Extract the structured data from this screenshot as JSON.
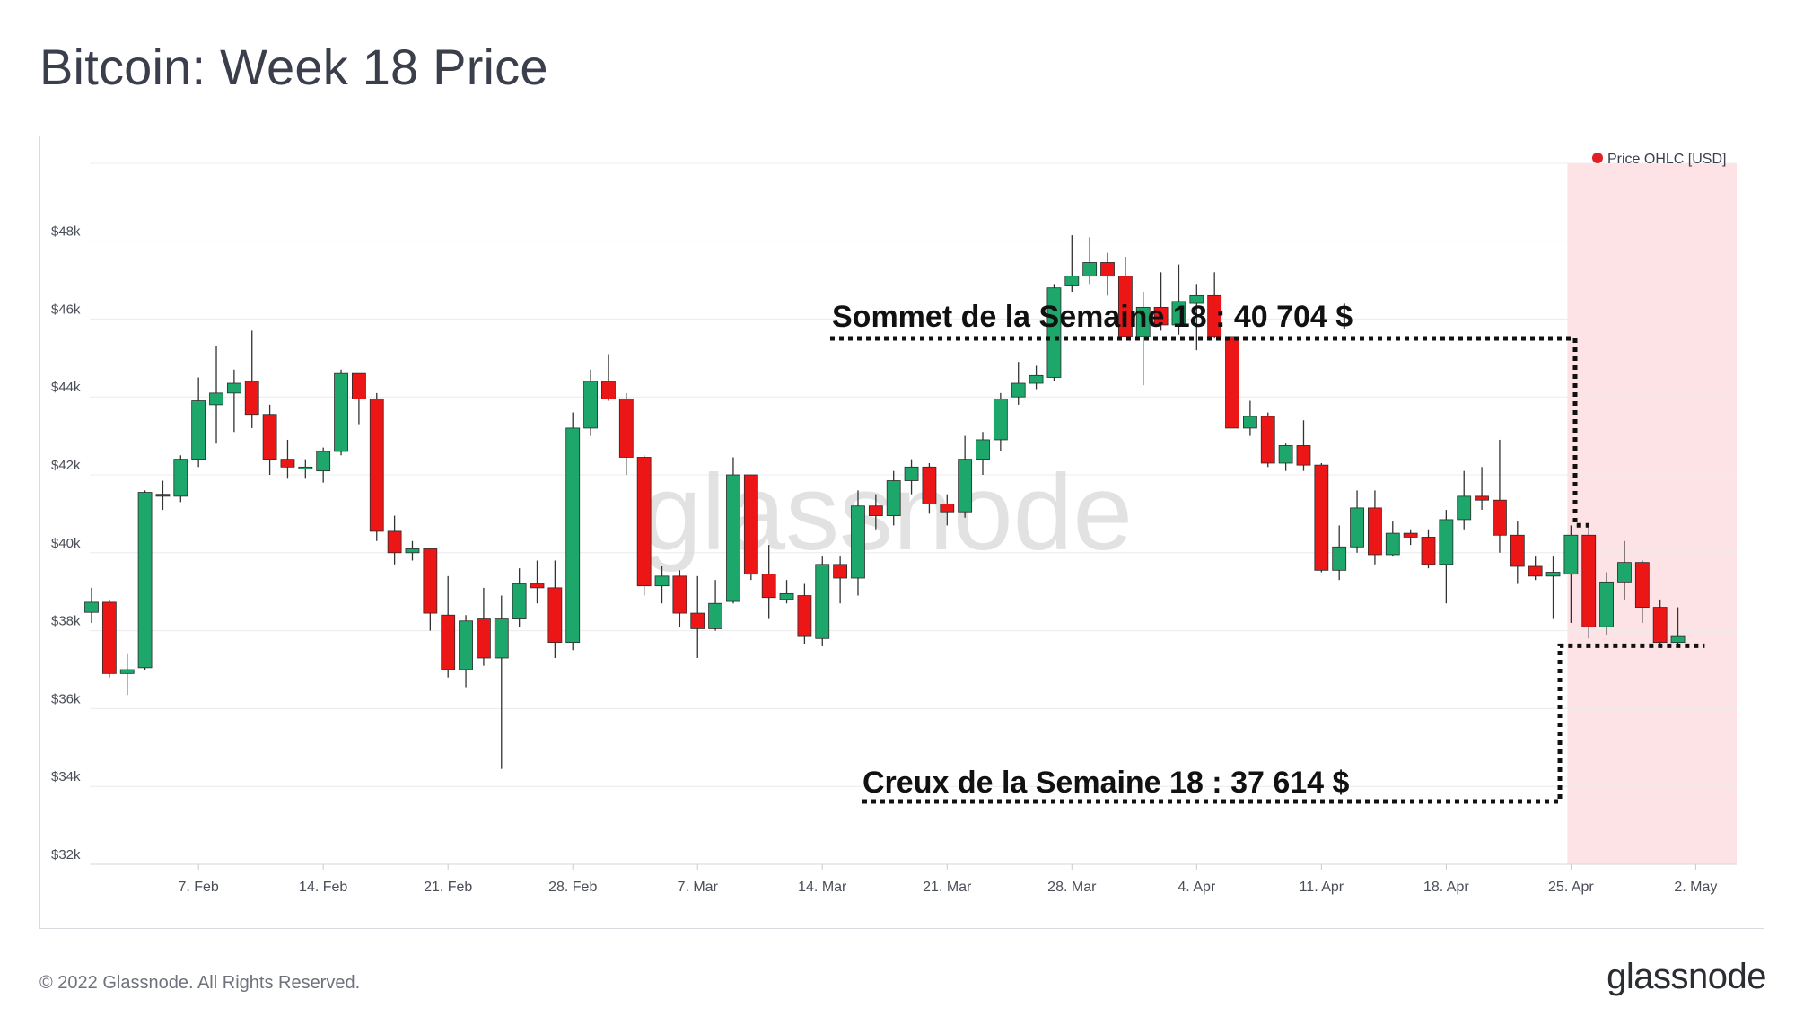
{
  "page": {
    "title": "Bitcoin: Week 18 Price",
    "copyright": "© 2022 Glassnode. All Rights Reserved.",
    "logo": "glassnode",
    "watermark": "glassnode"
  },
  "colors": {
    "up": "#1ea76a",
    "down": "#ec1616",
    "wick": "#333333",
    "highlight": "#fde3e6",
    "grid": "#ececee",
    "axis_text": "#4a4e57",
    "legend_dot": "#e31e24",
    "watermark": "#d9d9d9"
  },
  "chart_data": {
    "type": "candlestick",
    "ylim": [
      32000,
      50000
    ],
    "ytick_values": [
      32000,
      34000,
      36000,
      38000,
      40000,
      42000,
      44000,
      46000,
      48000
    ],
    "ytick_labels": [
      "$32k",
      "$34k",
      "$36k",
      "$38k",
      "$40k",
      "$42k",
      "$44k",
      "$46k",
      "$48k"
    ],
    "xtick_labels": [
      "7. Feb",
      "14. Feb",
      "21. Feb",
      "28. Feb",
      "7. Mar",
      "14. Mar",
      "21. Mar",
      "28. Mar",
      "4. Apr",
      "11. Apr",
      "18. Apr",
      "25. Apr",
      "2. May"
    ],
    "xtick_day_index": [
      6,
      13,
      20,
      27,
      34,
      41,
      48,
      55,
      62,
      69,
      76,
      83,
      90
    ],
    "legend": "Price OHLC [USD]",
    "legend_position": "top-right",
    "highlight_day_range": [
      83,
      90
    ],
    "annotations": {
      "top_label": "Sommet de la Semaine 18 : 40 704 $",
      "top_value": 40704,
      "bottom_label": "Creux de la Semaine 18  : 37 614 $",
      "bottom_value": 37614
    },
    "candles": [
      {
        "date": "1 Feb",
        "o": 38470,
        "h": 39100,
        "l": 38200,
        "c": 38730
      },
      {
        "date": "2 Feb",
        "o": 38730,
        "h": 38800,
        "l": 36800,
        "c": 36900
      },
      {
        "date": "3 Feb",
        "o": 36900,
        "h": 37400,
        "l": 36350,
        "c": 37000
      },
      {
        "date": "4 Feb",
        "o": 37050,
        "h": 41600,
        "l": 37000,
        "c": 41550
      },
      {
        "date": "5 Feb",
        "o": 41500,
        "h": 41850,
        "l": 41100,
        "c": 41450
      },
      {
        "date": "6 Feb",
        "o": 41450,
        "h": 42500,
        "l": 41300,
        "c": 42400
      },
      {
        "date": "7 Feb",
        "o": 42400,
        "h": 44500,
        "l": 42200,
        "c": 43900
      },
      {
        "date": "8 Feb",
        "o": 43800,
        "h": 45300,
        "l": 42800,
        "c": 44100
      },
      {
        "date": "9 Feb",
        "o": 44100,
        "h": 44700,
        "l": 43100,
        "c": 44350
      },
      {
        "date": "10 Feb",
        "o": 44400,
        "h": 45700,
        "l": 43200,
        "c": 43550
      },
      {
        "date": "11 Feb",
        "o": 43550,
        "h": 43800,
        "l": 42000,
        "c": 42400
      },
      {
        "date": "12 Feb",
        "o": 42400,
        "h": 42900,
        "l": 41900,
        "c": 42200
      },
      {
        "date": "13 Feb",
        "o": 42200,
        "h": 42400,
        "l": 41900,
        "c": 42200
      },
      {
        "date": "14 Feb",
        "o": 42100,
        "h": 42700,
        "l": 41800,
        "c": 42600
      },
      {
        "date": "15 Feb",
        "o": 42600,
        "h": 44700,
        "l": 42500,
        "c": 44600
      },
      {
        "date": "16 Feb",
        "o": 44600,
        "h": 44600,
        "l": 43300,
        "c": 43950
      },
      {
        "date": "17 Feb",
        "o": 43950,
        "h": 44100,
        "l": 40300,
        "c": 40550
      },
      {
        "date": "18 Feb",
        "o": 40550,
        "h": 40950,
        "l": 39700,
        "c": 40000
      },
      {
        "date": "19 Feb",
        "o": 40000,
        "h": 40300,
        "l": 39800,
        "c": 40100
      },
      {
        "date": "20 Feb",
        "o": 40100,
        "h": 40100,
        "l": 38000,
        "c": 38450
      },
      {
        "date": "21 Feb",
        "o": 38400,
        "h": 39400,
        "l": 36800,
        "c": 37000
      },
      {
        "date": "22 Feb",
        "o": 37000,
        "h": 38400,
        "l": 36550,
        "c": 38250
      },
      {
        "date": "23 Feb",
        "o": 38300,
        "h": 39100,
        "l": 37100,
        "c": 37300
      },
      {
        "date": "24 Feb",
        "o": 37300,
        "h": 38900,
        "l": 34450,
        "c": 38300
      },
      {
        "date": "25 Feb",
        "o": 38300,
        "h": 39600,
        "l": 38100,
        "c": 39200
      },
      {
        "date": "26 Feb",
        "o": 39200,
        "h": 39800,
        "l": 38700,
        "c": 39100
      },
      {
        "date": "27 Feb",
        "o": 39100,
        "h": 39800,
        "l": 37300,
        "c": 37700
      },
      {
        "date": "28 Feb",
        "o": 37700,
        "h": 43600,
        "l": 37500,
        "c": 43200
      },
      {
        "date": "1 Mar",
        "o": 43200,
        "h": 44700,
        "l": 43000,
        "c": 44400
      },
      {
        "date": "2 Mar",
        "o": 44400,
        "h": 45100,
        "l": 43900,
        "c": 43950
      },
      {
        "date": "3 Mar",
        "o": 43950,
        "h": 44100,
        "l": 42000,
        "c": 42450
      },
      {
        "date": "4 Mar",
        "o": 42450,
        "h": 42500,
        "l": 38900,
        "c": 39150
      },
      {
        "date": "5 Mar",
        "o": 39150,
        "h": 39650,
        "l": 38700,
        "c": 39400
      },
      {
        "date": "6 Mar",
        "o": 39400,
        "h": 39550,
        "l": 38100,
        "c": 38450
      },
      {
        "date": "7 Mar",
        "o": 38450,
        "h": 39400,
        "l": 37300,
        "c": 38050
      },
      {
        "date": "8 Mar",
        "o": 38050,
        "h": 39300,
        "l": 38000,
        "c": 38700
      },
      {
        "date": "9 Mar",
        "o": 38750,
        "h": 42450,
        "l": 38700,
        "c": 42000
      },
      {
        "date": "10 Mar",
        "o": 42000,
        "h": 42000,
        "l": 39300,
        "c": 39450
      },
      {
        "date": "11 Mar",
        "o": 39450,
        "h": 40200,
        "l": 38300,
        "c": 38850
      },
      {
        "date": "12 Mar",
        "o": 38800,
        "h": 39300,
        "l": 38700,
        "c": 38950
      },
      {
        "date": "13 Mar",
        "o": 38900,
        "h": 39200,
        "l": 37650,
        "c": 37850
      },
      {
        "date": "14 Mar",
        "o": 37800,
        "h": 39900,
        "l": 37600,
        "c": 39700
      },
      {
        "date": "15 Mar",
        "o": 39700,
        "h": 39900,
        "l": 38700,
        "c": 39350
      },
      {
        "date": "16 Mar",
        "o": 39350,
        "h": 41600,
        "l": 38900,
        "c": 41200
      },
      {
        "date": "17 Mar",
        "o": 41200,
        "h": 41500,
        "l": 40600,
        "c": 40950
      },
      {
        "date": "18 Mar",
        "o": 40950,
        "h": 42100,
        "l": 40700,
        "c": 41850
      },
      {
        "date": "19 Mar",
        "o": 41850,
        "h": 42400,
        "l": 41500,
        "c": 42200
      },
      {
        "date": "20 Mar",
        "o": 42200,
        "h": 42300,
        "l": 41000,
        "c": 41250
      },
      {
        "date": "21 Mar",
        "o": 41250,
        "h": 41500,
        "l": 40700,
        "c": 41050
      },
      {
        "date": "22 Mar",
        "o": 41050,
        "h": 43000,
        "l": 40900,
        "c": 42400
      },
      {
        "date": "23 Mar",
        "o": 42400,
        "h": 43100,
        "l": 42000,
        "c": 42900
      },
      {
        "date": "24 Mar",
        "o": 42900,
        "h": 44100,
        "l": 42600,
        "c": 43950
      },
      {
        "date": "25 Mar",
        "o": 44000,
        "h": 44900,
        "l": 43800,
        "c": 44350
      },
      {
        "date": "26 Mar",
        "o": 44350,
        "h": 44800,
        "l": 44200,
        "c": 44550
      },
      {
        "date": "27 Mar",
        "o": 44500,
        "h": 46900,
        "l": 44400,
        "c": 46800
      },
      {
        "date": "28 Mar",
        "o": 46850,
        "h": 48150,
        "l": 46700,
        "c": 47100
      },
      {
        "date": "29 Mar",
        "o": 47100,
        "h": 48100,
        "l": 46900,
        "c": 47450
      },
      {
        "date": "30 Mar",
        "o": 47450,
        "h": 47700,
        "l": 46600,
        "c": 47100
      },
      {
        "date": "31 Mar",
        "o": 47100,
        "h": 47600,
        "l": 45600,
        "c": 45550
      },
      {
        "date": "1 Apr",
        "o": 45550,
        "h": 46700,
        "l": 44300,
        "c": 46300
      },
      {
        "date": "2 Apr",
        "o": 46300,
        "h": 47200,
        "l": 45700,
        "c": 45850
      },
      {
        "date": "3 Apr",
        "o": 45850,
        "h": 47400,
        "l": 45600,
        "c": 46450
      },
      {
        "date": "4 Apr",
        "o": 46400,
        "h": 46900,
        "l": 45200,
        "c": 46600
      },
      {
        "date": "5 Apr",
        "o": 46600,
        "h": 47200,
        "l": 45500,
        "c": 45550
      },
      {
        "date": "6 Apr",
        "o": 45550,
        "h": 45550,
        "l": 43200,
        "c": 43200
      },
      {
        "date": "7 Apr",
        "o": 43200,
        "h": 43900,
        "l": 43000,
        "c": 43500
      },
      {
        "date": "8 Apr",
        "o": 43500,
        "h": 43600,
        "l": 42200,
        "c": 42300
      },
      {
        "date": "9 Apr",
        "o": 42300,
        "h": 42800,
        "l": 42100,
        "c": 42750
      },
      {
        "date": "10 Apr",
        "o": 42750,
        "h": 43400,
        "l": 42100,
        "c": 42250
      },
      {
        "date": "11 Apr",
        "o": 42250,
        "h": 42300,
        "l": 39500,
        "c": 39550
      },
      {
        "date": "12 Apr",
        "o": 39550,
        "h": 40700,
        "l": 39300,
        "c": 40150
      },
      {
        "date": "13 Apr",
        "o": 40150,
        "h": 41600,
        "l": 40000,
        "c": 41150
      },
      {
        "date": "14 Apr",
        "o": 41150,
        "h": 41600,
        "l": 39700,
        "c": 39950
      },
      {
        "date": "15 Apr",
        "o": 39950,
        "h": 40800,
        "l": 39900,
        "c": 40500
      },
      {
        "date": "16 Apr",
        "o": 40500,
        "h": 40600,
        "l": 40200,
        "c": 40400
      },
      {
        "date": "17 Apr",
        "o": 40400,
        "h": 40600,
        "l": 39600,
        "c": 39700
      },
      {
        "date": "18 Apr",
        "o": 39700,
        "h": 41100,
        "l": 38700,
        "c": 40850
      },
      {
        "date": "19 Apr",
        "o": 40850,
        "h": 42100,
        "l": 40600,
        "c": 41450
      },
      {
        "date": "20 Apr",
        "o": 41450,
        "h": 42200,
        "l": 41100,
        "c": 41350
      },
      {
        "date": "21 Apr",
        "o": 41350,
        "h": 42900,
        "l": 40000,
        "c": 40450
      },
      {
        "date": "22 Apr",
        "o": 40450,
        "h": 40800,
        "l": 39200,
        "c": 39650
      },
      {
        "date": "23 Apr",
        "o": 39650,
        "h": 39900,
        "l": 39300,
        "c": 39400
      },
      {
        "date": "24 Apr",
        "o": 39400,
        "h": 39900,
        "l": 38300,
        "c": 39500
      },
      {
        "date": "25 Apr",
        "o": 39450,
        "h": 40700,
        "l": 38200,
        "c": 40450
      },
      {
        "date": "26 Apr",
        "o": 40450,
        "h": 40700,
        "l": 37800,
        "c": 38100
      },
      {
        "date": "27 Apr",
        "o": 38100,
        "h": 39500,
        "l": 37900,
        "c": 39250
      },
      {
        "date": "28 Apr",
        "o": 39250,
        "h": 40300,
        "l": 38800,
        "c": 39750
      },
      {
        "date": "29 Apr",
        "o": 39750,
        "h": 39800,
        "l": 38200,
        "c": 38600
      },
      {
        "date": "30 Apr",
        "o": 38600,
        "h": 38800,
        "l": 37614,
        "c": 37700
      },
      {
        "date": "1 May",
        "o": 37700,
        "h": 38600,
        "l": 37614,
        "c": 37850
      }
    ]
  }
}
